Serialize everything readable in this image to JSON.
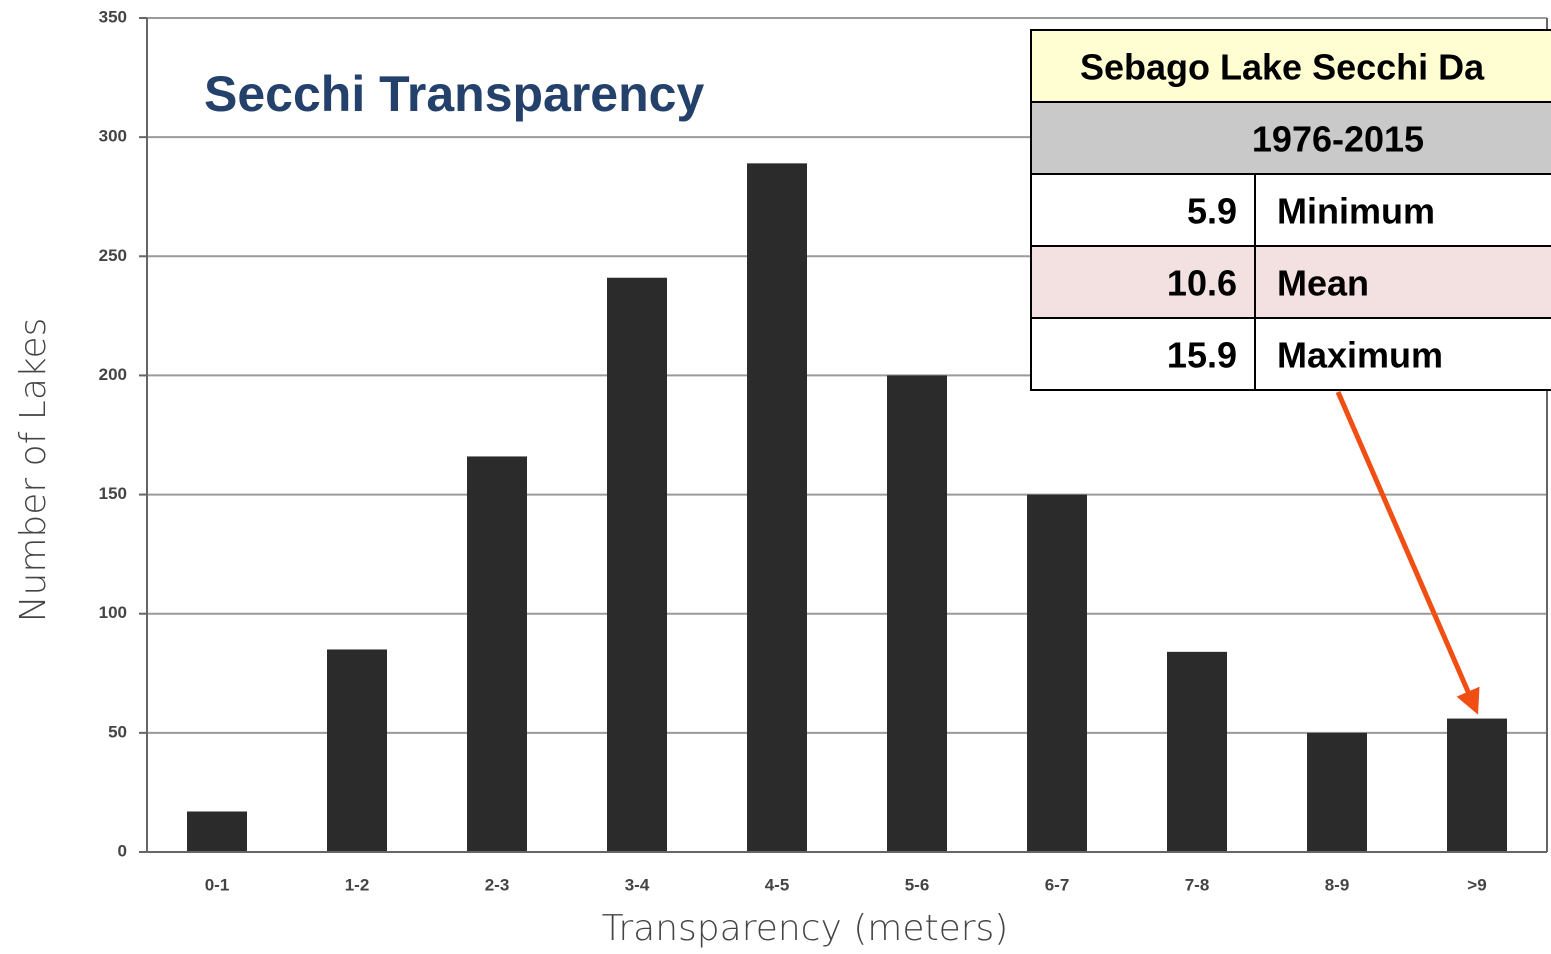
{
  "chart_data": {
    "type": "bar",
    "title": "Secchi Transparency",
    "xlabel": "Transparency (meters)",
    "ylabel": "Number of Lakes",
    "categories": [
      "0-1",
      "1-2",
      "2-3",
      "3-4",
      "4-5",
      "5-6",
      "6-7",
      "7-8",
      "8-9",
      ">9"
    ],
    "values": [
      17,
      85,
      166,
      241,
      289,
      200,
      150,
      84,
      50,
      56
    ],
    "color": "#2b2b2b",
    "ylim": [
      0,
      350
    ],
    "yticks": [
      0,
      50,
      100,
      150,
      200,
      250,
      300,
      350
    ],
    "grid": true
  },
  "table": {
    "title": "Sebago Lake Secchi Da",
    "period": "1976-2015",
    "rows": [
      [
        5.9,
        "Minimum"
      ],
      [
        10.6,
        "Mean"
      ],
      [
        15.9,
        "Maximum"
      ]
    ]
  }
}
